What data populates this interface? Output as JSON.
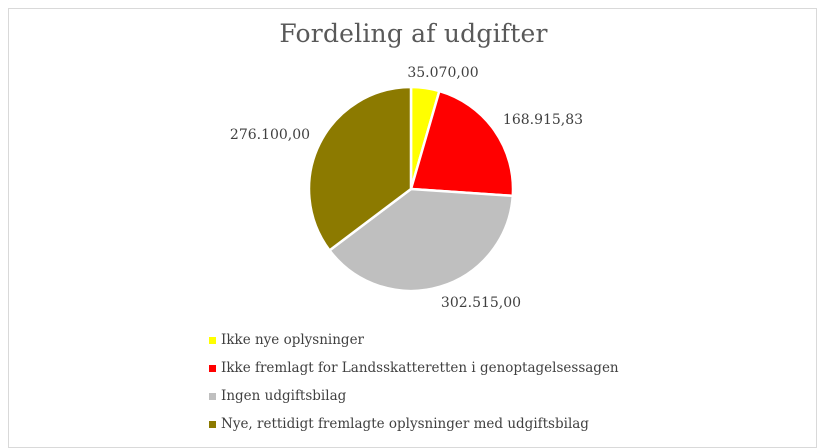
{
  "chart_data": {
    "type": "pie",
    "title": "Fordeling af udgifter",
    "slices": [
      {
        "label": "Ikke nye oplysninger",
        "value": 35070.0,
        "value_label": "35.070,00",
        "color": "#ffff00"
      },
      {
        "label": "Ikke fremlagt for Landsskatteretten i genoptagelsessagen",
        "value": 168915.83,
        "value_label": "168.915,83",
        "color": "#ff0000"
      },
      {
        "label": "Ingen udgiftsbilag",
        "value": 302515.0,
        "value_label": "302.515,00",
        "color": "#bfbfbf"
      },
      {
        "label": "Nye, rettidigt fremlagte oplysninger med udgiftsbilag",
        "value": 276100.0,
        "value_label": "276.100,00",
        "color": "#8c7a00"
      }
    ],
    "legend_position": "bottom-left"
  }
}
